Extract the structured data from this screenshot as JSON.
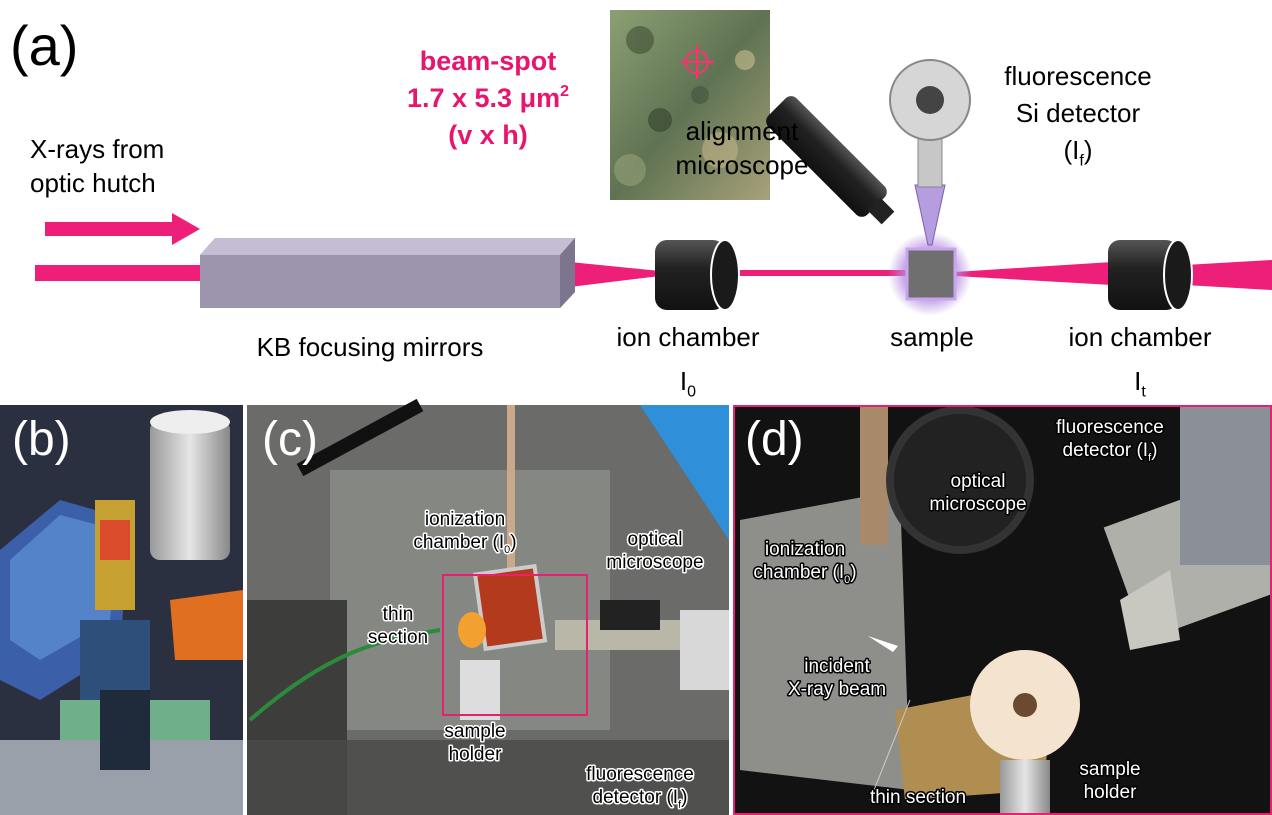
{
  "panel_a": {
    "label": "(a)",
    "source": {
      "lines": [
        {
          "text": "X-rays from"
        },
        {
          "text": "optic hutch"
        }
      ]
    },
    "beam_spot": {
      "lines": [
        {
          "text": "beam-spot"
        },
        {
          "text": "1.7 x 5.3 μm",
          "sup": "2"
        },
        {
          "text": "(v x h)"
        }
      ]
    },
    "alignment_microscope": {
      "lines": [
        {
          "text": "alignment"
        },
        {
          "text": "microscope"
        }
      ]
    },
    "detector": {
      "lines": [
        {
          "text": "fluorescence"
        },
        {
          "text": "Si detector"
        },
        {
          "text": "(I",
          "sub": "f",
          "tail": ")"
        }
      ]
    },
    "mirrors": {
      "lines": [
        {
          "text": "KB focusing mirrors"
        }
      ]
    },
    "chamber_in": {
      "lines": [
        {
          "text": "ion chamber"
        },
        {
          "text": "I",
          "sub": "0"
        }
      ]
    },
    "sample": {
      "lines": [
        {
          "text": "sample"
        }
      ]
    },
    "chamber_out": {
      "lines": [
        {
          "text": "ion chamber"
        },
        {
          "text": "I",
          "sub": "t"
        }
      ]
    }
  },
  "panel_b": {
    "label": "(b)"
  },
  "panel_c": {
    "label": "(c)",
    "annotations": [
      {
        "lines": [
          {
            "text": "ionization"
          },
          {
            "text": "chamber (I",
            "sub": "0",
            "tail": ")"
          }
        ]
      },
      {
        "lines": [
          {
            "text": "thin"
          },
          {
            "text": "section"
          }
        ]
      },
      {
        "lines": [
          {
            "text": "optical"
          },
          {
            "text": "microscope"
          }
        ]
      },
      {
        "lines": [
          {
            "text": "sample"
          },
          {
            "text": "holder"
          }
        ]
      },
      {
        "lines": [
          {
            "text": "fluorescence"
          },
          {
            "text": "detector (I",
            "sub": "f",
            "tail": ")"
          }
        ]
      }
    ]
  },
  "panel_d": {
    "label": "(d)",
    "annotations": [
      {
        "lines": [
          {
            "text": "fluorescence"
          },
          {
            "text": "detector (I",
            "sub": "f",
            "tail": ")"
          }
        ]
      },
      {
        "lines": [
          {
            "text": "optical"
          },
          {
            "text": "microscope"
          }
        ]
      },
      {
        "lines": [
          {
            "text": "ionization"
          },
          {
            "text": "chamber (I",
            "sub": "0",
            "tail": ")"
          }
        ]
      },
      {
        "lines": [
          {
            "text": "incident"
          },
          {
            "text": "X-ray beam"
          }
        ]
      },
      {
        "lines": [
          {
            "text": "thin section"
          }
        ]
      },
      {
        "lines": [
          {
            "text": "sample"
          },
          {
            "text": "holder"
          }
        ]
      }
    ]
  }
}
